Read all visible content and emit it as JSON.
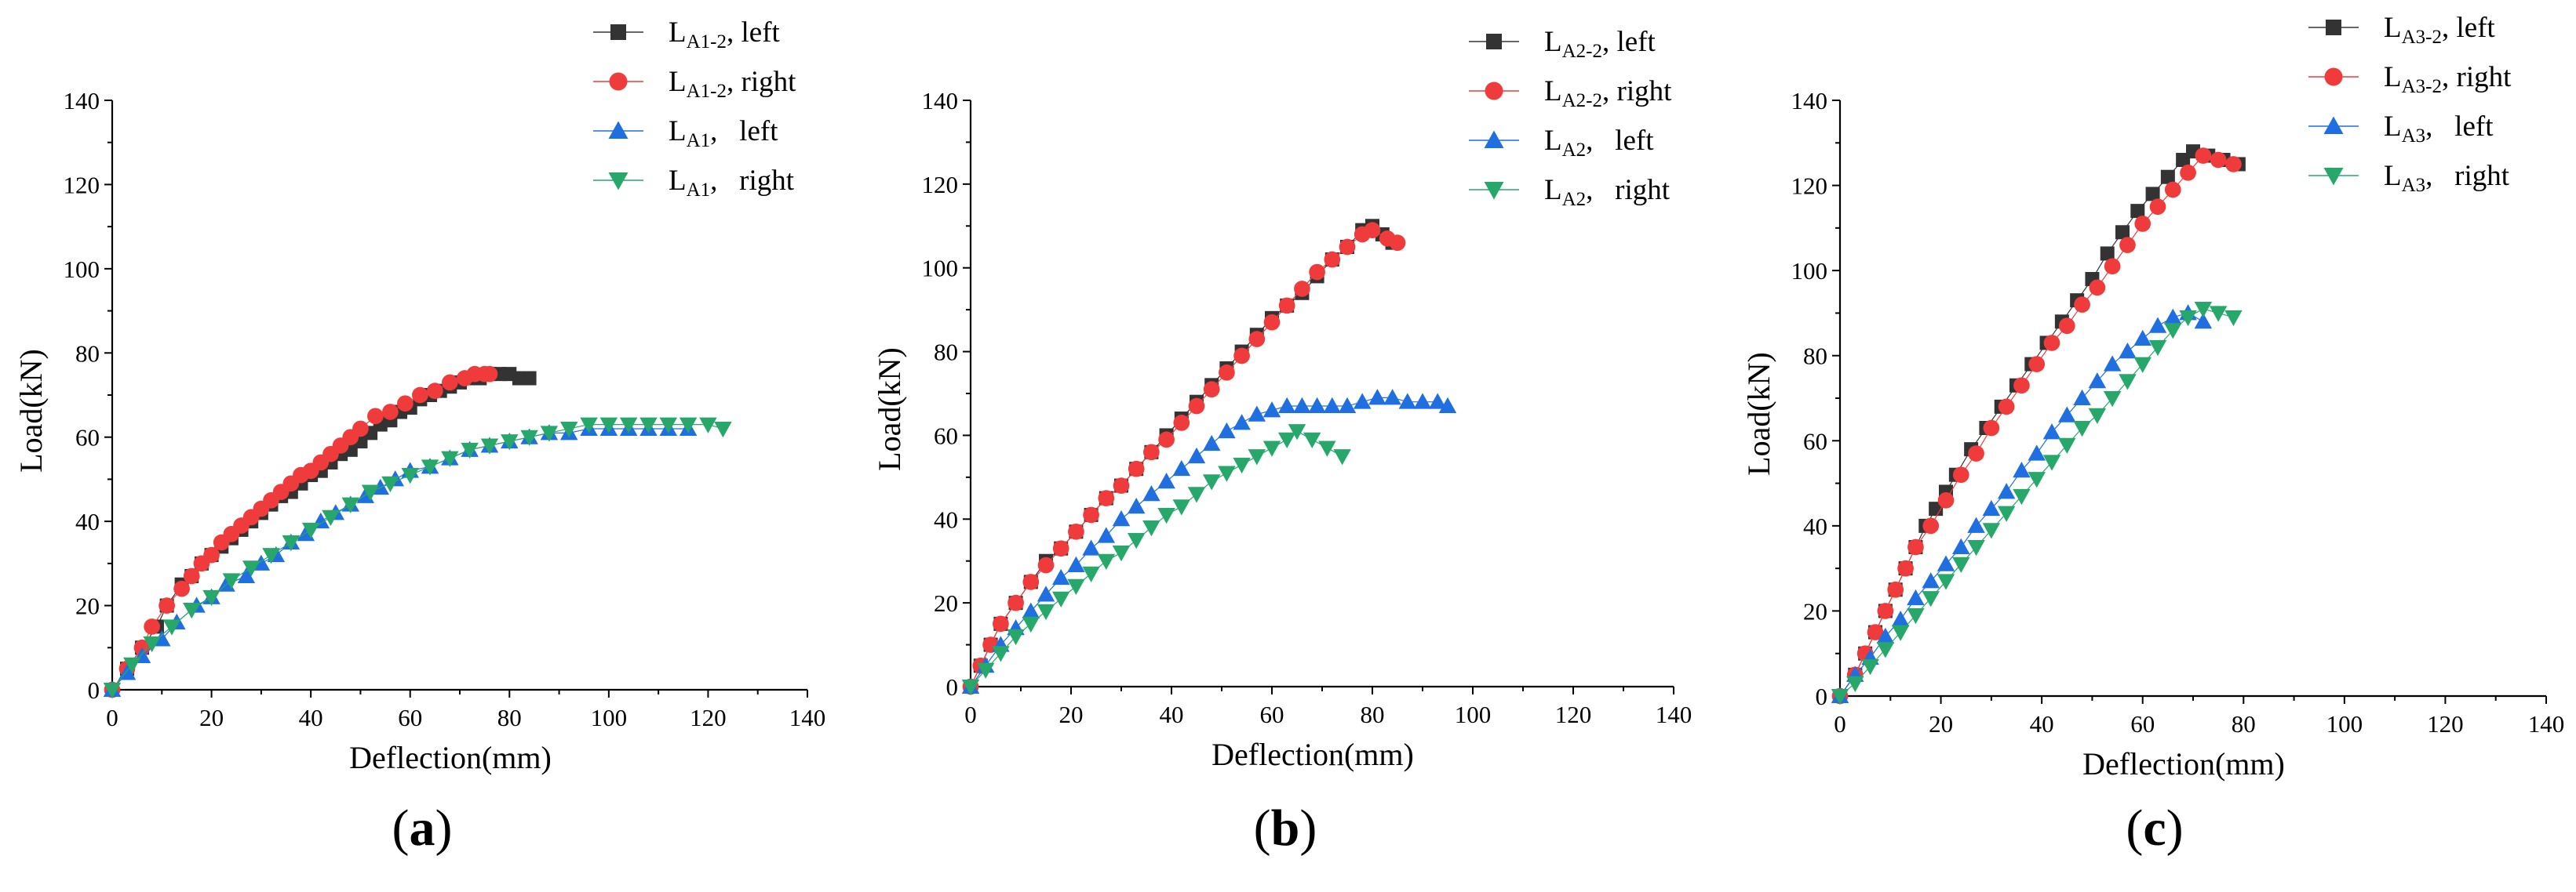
{
  "figure": {
    "colors": {
      "left_ref": "#333333",
      "right_ref": "#ef3b3b",
      "left": "#1f6fe0",
      "right": "#27a86a"
    }
  },
  "chart_data": [
    {
      "type": "scatter",
      "panel_label": "(a)",
      "panel_label_parts": {
        "open": "(",
        "letter": "a",
        "close": ")"
      },
      "xlabel": "Deflection(mm)",
      "ylabel": "Load(kN)",
      "xlim": [
        0,
        140
      ],
      "ylim": [
        0,
        140
      ],
      "xticks": [
        "0",
        "20",
        "40",
        "60",
        "80",
        "100",
        "120",
        "140"
      ],
      "yticks": [
        "0",
        "20",
        "40",
        "60",
        "80",
        "100",
        "120",
        "140"
      ],
      "legend": [
        {
          "base": "L",
          "sub": "A1-2",
          "suffix": ", left",
          "marker": "square",
          "color_key": "left_ref"
        },
        {
          "base": "L",
          "sub": "A1-2",
          "suffix": ", right",
          "marker": "circle",
          "color_key": "right_ref"
        },
        {
          "base": "L",
          "sub": "A1",
          "suffix": ",   left",
          "marker": "triangle-up",
          "color_key": "left"
        },
        {
          "base": "L",
          "sub": "A1",
          "suffix": ",   right",
          "marker": "triangle-down",
          "color_key": "right"
        }
      ],
      "series": [
        {
          "name": "LA1-2, left",
          "marker": "square",
          "color_key": "left_ref",
          "x": [
            0,
            3,
            6,
            9,
            11,
            14,
            16,
            18,
            20,
            22,
            24,
            26,
            28,
            30,
            32,
            34,
            36,
            38,
            40,
            42,
            44,
            46,
            48,
            50,
            52,
            54,
            56,
            58,
            60,
            62,
            64,
            66,
            68,
            70,
            72,
            74,
            76,
            78,
            80,
            82,
            84
          ],
          "y": [
            0,
            5,
            10,
            15,
            20,
            25,
            27,
            30,
            32,
            34,
            36,
            38,
            40,
            42,
            44,
            46,
            47,
            49,
            51,
            52,
            54,
            56,
            57,
            59,
            61,
            63,
            64,
            66,
            67,
            69,
            70,
            71,
            72,
            73,
            74,
            74,
            75,
            75,
            75,
            74,
            74
          ]
        },
        {
          "name": "LA1-2, right",
          "marker": "circle",
          "color_key": "right_ref",
          "x": [
            0,
            3,
            6,
            8,
            11,
            14,
            16,
            18,
            20,
            22,
            24,
            26,
            28,
            30,
            32,
            34,
            36,
            38,
            40,
            42,
            44,
            46,
            48,
            50,
            53,
            56,
            59,
            62,
            65,
            68,
            71,
            73,
            75,
            76
          ],
          "y": [
            0,
            5,
            10,
            15,
            20,
            24,
            27,
            30,
            32,
            35,
            37,
            39,
            41,
            43,
            45,
            47,
            49,
            51,
            52,
            54,
            56,
            58,
            60,
            62,
            65,
            66,
            68,
            70,
            71,
            73,
            74,
            75,
            75,
            75
          ]
        },
        {
          "name": "LA1, left",
          "marker": "triangle-up",
          "color_key": "left",
          "x": [
            0,
            3,
            6,
            10,
            13,
            17,
            20,
            23,
            27,
            30,
            33,
            36,
            39,
            42,
            45,
            48,
            51,
            54,
            57,
            60,
            64,
            68,
            72,
            76,
            80,
            84,
            88,
            92,
            96,
            100,
            104,
            108,
            112,
            116
          ],
          "y": [
            0,
            4,
            8,
            12,
            16,
            20,
            22,
            25,
            27,
            30,
            32,
            35,
            37,
            40,
            42,
            44,
            46,
            48,
            50,
            52,
            53,
            55,
            57,
            58,
            59,
            60,
            61,
            61,
            62,
            62,
            62,
            62,
            62,
            62
          ]
        },
        {
          "name": "LA1, right",
          "marker": "triangle-down",
          "color_key": "right",
          "x": [
            0,
            4,
            8,
            12,
            16,
            20,
            24,
            28,
            32,
            36,
            40,
            44,
            48,
            52,
            56,
            60,
            64,
            68,
            72,
            76,
            80,
            84,
            88,
            92,
            96,
            100,
            104,
            108,
            112,
            116,
            120,
            123
          ],
          "y": [
            0,
            6,
            11,
            15,
            19,
            22,
            26,
            29,
            32,
            35,
            38,
            41,
            44,
            47,
            49,
            51,
            53,
            55,
            57,
            58,
            59,
            60,
            61,
            62,
            63,
            63,
            63,
            63,
            63,
            63,
            63,
            62
          ]
        }
      ]
    },
    {
      "type": "scatter",
      "panel_label": "(b)",
      "panel_label_parts": {
        "open": "(",
        "letter": "b",
        "close": ")"
      },
      "xlabel": "Deflection(mm)",
      "ylabel": "Load(kN)",
      "xlim": [
        0,
        140
      ],
      "ylim": [
        0,
        140
      ],
      "xticks": [
        "0",
        "20",
        "40",
        "60",
        "80",
        "100",
        "120",
        "140"
      ],
      "yticks": [
        "0",
        "20",
        "40",
        "60",
        "80",
        "100",
        "120",
        "140"
      ],
      "legend": [
        {
          "base": "L",
          "sub": "A2-2",
          "suffix": ", left",
          "marker": "square",
          "color_key": "left_ref"
        },
        {
          "base": "L",
          "sub": "A2-2",
          "suffix": ", right",
          "marker": "circle",
          "color_key": "right_ref"
        },
        {
          "base": "L",
          "sub": "A2",
          "suffix": ",   left",
          "marker": "triangle-up",
          "color_key": "left"
        },
        {
          "base": "L",
          "sub": "A2",
          "suffix": ",   right",
          "marker": "triangle-down",
          "color_key": "right"
        }
      ],
      "series": [
        {
          "name": "LA2-2, left",
          "marker": "square",
          "color_key": "left_ref",
          "x": [
            0,
            2,
            4,
            6,
            9,
            12,
            15,
            18,
            21,
            24,
            27,
            30,
            33,
            36,
            39,
            42,
            45,
            48,
            51,
            54,
            57,
            60,
            63,
            66,
            69,
            72,
            75,
            78,
            80,
            82,
            84
          ],
          "y": [
            0,
            5,
            10,
            15,
            20,
            25,
            30,
            33,
            37,
            41,
            45,
            48,
            52,
            56,
            60,
            64,
            68,
            72,
            76,
            80,
            84,
            88,
            91,
            94,
            98,
            102,
            105,
            109,
            110,
            108,
            106
          ]
        },
        {
          "name": "LA2-2, right",
          "marker": "circle",
          "color_key": "right_ref",
          "x": [
            0,
            2,
            4,
            6,
            9,
            12,
            15,
            18,
            21,
            24,
            27,
            30,
            33,
            36,
            39,
            42,
            45,
            48,
            51,
            54,
            57,
            60,
            63,
            66,
            69,
            72,
            75,
            78,
            80,
            83,
            85
          ],
          "y": [
            0,
            5,
            10,
            15,
            20,
            25,
            29,
            33,
            37,
            41,
            45,
            48,
            52,
            56,
            59,
            63,
            67,
            71,
            75,
            79,
            83,
            87,
            91,
            95,
            99,
            102,
            105,
            108,
            109,
            107,
            106
          ]
        },
        {
          "name": "LA2, left",
          "marker": "triangle-up",
          "color_key": "left",
          "x": [
            0,
            3,
            6,
            9,
            12,
            15,
            18,
            21,
            24,
            27,
            30,
            33,
            36,
            39,
            42,
            45,
            48,
            51,
            54,
            57,
            60,
            63,
            66,
            69,
            72,
            75,
            78,
            81,
            84,
            87,
            90,
            93,
            95
          ],
          "y": [
            0,
            5,
            10,
            14,
            18,
            22,
            26,
            29,
            33,
            36,
            40,
            43,
            46,
            49,
            52,
            55,
            58,
            61,
            63,
            65,
            66,
            67,
            67,
            67,
            67,
            67,
            68,
            69,
            69,
            68,
            68,
            68,
            67
          ]
        },
        {
          "name": "LA2, right",
          "marker": "triangle-down",
          "color_key": "right",
          "x": [
            0,
            3,
            6,
            9,
            12,
            15,
            18,
            21,
            24,
            27,
            30,
            33,
            36,
            39,
            42,
            45,
            48,
            51,
            54,
            57,
            60,
            63,
            65,
            68,
            71,
            74
          ],
          "y": [
            0,
            4,
            8,
            12,
            15,
            18,
            21,
            24,
            27,
            30,
            32,
            35,
            38,
            41,
            43,
            46,
            49,
            51,
            53,
            55,
            57,
            59,
            61,
            59,
            57,
            55
          ]
        }
      ]
    },
    {
      "type": "scatter",
      "panel_label": "(c)",
      "panel_label_parts": {
        "open": "(",
        "letter": "c",
        "close": ")"
      },
      "xlabel": "Deflection(mm)",
      "ylabel": "Load(kN)",
      "xlim": [
        0,
        140
      ],
      "ylim": [
        0,
        140
      ],
      "xticks": [
        "0",
        "20",
        "40",
        "60",
        "80",
        "100",
        "120",
        "140"
      ],
      "yticks": [
        "0",
        "20",
        "40",
        "60",
        "80",
        "100",
        "120",
        "140"
      ],
      "legend": [
        {
          "base": "L",
          "sub": "A3-2",
          "suffix": ", left",
          "marker": "square",
          "color_key": "left_ref"
        },
        {
          "base": "L",
          "sub": "A3-2",
          "suffix": ", right",
          "marker": "circle",
          "color_key": "right_ref"
        },
        {
          "base": "L",
          "sub": "A3",
          "suffix": ",   left",
          "marker": "triangle-up",
          "color_key": "left"
        },
        {
          "base": "L",
          "sub": "A3",
          "suffix": ",   right",
          "marker": "triangle-down",
          "color_key": "right"
        }
      ],
      "series": [
        {
          "name": "LA3-2, left",
          "marker": "square",
          "color_key": "left_ref",
          "x": [
            0,
            3,
            5,
            7,
            9,
            11,
            13,
            15,
            17,
            19,
            21,
            23,
            26,
            29,
            32,
            35,
            38,
            41,
            44,
            47,
            50,
            53,
            56,
            59,
            62,
            65,
            68,
            70,
            73,
            76,
            79
          ],
          "y": [
            0,
            5,
            10,
            15,
            20,
            25,
            30,
            35,
            40,
            44,
            48,
            52,
            58,
            63,
            68,
            73,
            78,
            83,
            88,
            93,
            98,
            104,
            109,
            114,
            118,
            122,
            126,
            128,
            127,
            126,
            125
          ]
        },
        {
          "name": "LA3-2, right",
          "marker": "circle",
          "color_key": "right_ref",
          "x": [
            0,
            3,
            5,
            7,
            9,
            11,
            13,
            15,
            18,
            21,
            24,
            27,
            30,
            33,
            36,
            39,
            42,
            45,
            48,
            51,
            54,
            57,
            60,
            63,
            66,
            69,
            72,
            75,
            78
          ],
          "y": [
            0,
            5,
            10,
            15,
            20,
            25,
            30,
            35,
            40,
            46,
            52,
            57,
            63,
            68,
            73,
            78,
            83,
            87,
            92,
            96,
            101,
            106,
            111,
            115,
            119,
            123,
            127,
            126,
            125
          ]
        },
        {
          "name": "LA3, left",
          "marker": "triangle-up",
          "color_key": "left",
          "x": [
            0,
            3,
            6,
            9,
            12,
            15,
            18,
            21,
            24,
            27,
            30,
            33,
            36,
            39,
            42,
            45,
            48,
            51,
            54,
            57,
            60,
            63,
            66,
            69,
            72
          ],
          "y": [
            0,
            5,
            9,
            14,
            18,
            23,
            27,
            31,
            35,
            40,
            44,
            48,
            53,
            57,
            62,
            66,
            70,
            74,
            78,
            81,
            84,
            87,
            89,
            90,
            88
          ]
        },
        {
          "name": "LA3, right",
          "marker": "triangle-down",
          "color_key": "right",
          "x": [
            0,
            3,
            6,
            9,
            12,
            15,
            18,
            21,
            24,
            27,
            30,
            33,
            36,
            39,
            42,
            45,
            48,
            51,
            54,
            57,
            60,
            63,
            66,
            69,
            72,
            75,
            78
          ],
          "y": [
            0,
            3,
            7,
            11,
            15,
            19,
            23,
            27,
            31,
            35,
            39,
            43,
            47,
            51,
            55,
            59,
            63,
            66,
            70,
            74,
            78,
            82,
            86,
            89,
            91,
            90,
            89
          ]
        }
      ]
    }
  ]
}
